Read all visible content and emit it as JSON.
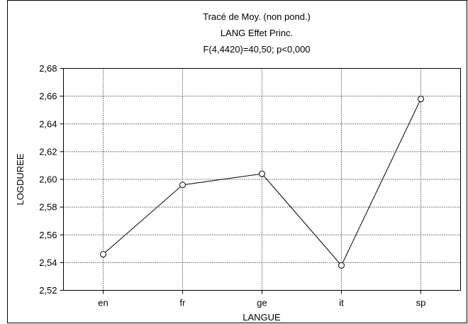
{
  "chart_data": {
    "type": "line",
    "title": "Tracé de Moy. (non pond.)",
    "subtitle": "LANG Effet Princ.",
    "stat_line": "F(4,4420)=40,50; p<0,000",
    "xlabel": "LANGUE",
    "ylabel": "LOGDUREE",
    "categories": [
      "en",
      "fr",
      "ge",
      "it",
      "sp"
    ],
    "values": [
      2.546,
      2.596,
      2.604,
      2.538,
      2.658
    ],
    "ylim": [
      2.52,
      2.68
    ],
    "yticks": [
      2.52,
      2.54,
      2.56,
      2.58,
      2.6,
      2.62,
      2.64,
      2.66,
      2.68
    ],
    "ytick_labels": [
      "2,52",
      "2,54",
      "2,56",
      "2,58",
      "2,60",
      "2,62",
      "2,64",
      "2,66",
      "2,68"
    ],
    "grid": true,
    "line_color": "#000000",
    "marker": "open-circle"
  }
}
